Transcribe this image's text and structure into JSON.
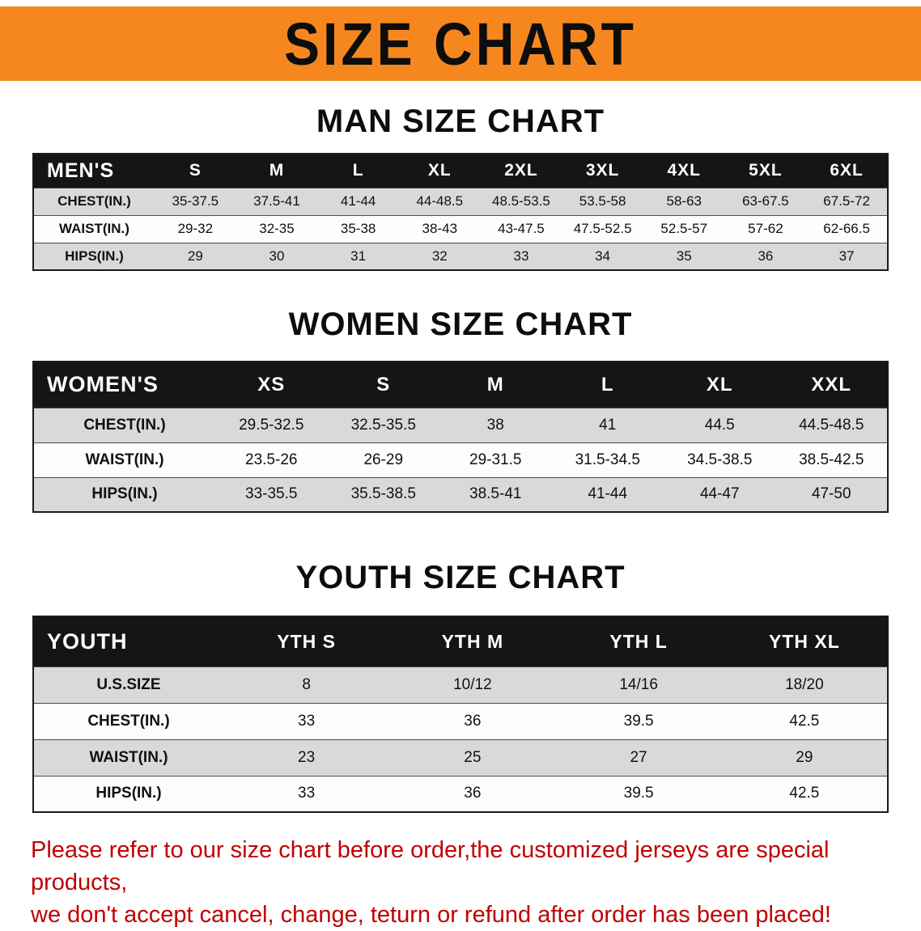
{
  "banner": {
    "title": "SIZE CHART"
  },
  "sections": [
    {
      "heading": "MAN SIZE CHART",
      "table": {
        "header": [
          "MEN'S",
          "S",
          "M",
          "L",
          "XL",
          "2XL",
          "3XL",
          "4XL",
          "5XL",
          "6XL"
        ],
        "rows": [
          [
            "CHEST(IN.)",
            "35-37.5",
            "37.5-41",
            "41-44",
            "44-48.5",
            "48.5-53.5",
            "53.5-58",
            "58-63",
            "63-67.5",
            "67.5-72"
          ],
          [
            "WAIST(IN.)",
            "29-32",
            "32-35",
            "35-38",
            "38-43",
            "43-47.5",
            "47.5-52.5",
            "52.5-57",
            "57-62",
            "62-66.5"
          ],
          [
            "HIPS(IN.)",
            "29",
            "30",
            "31",
            "32",
            "33",
            "34",
            "35",
            "36",
            "37"
          ]
        ]
      }
    },
    {
      "heading": "WOMEN SIZE CHART",
      "table": {
        "header": [
          "WOMEN'S",
          "XS",
          "S",
          "M",
          "L",
          "XL",
          "XXL"
        ],
        "rows": [
          [
            "CHEST(IN.)",
            "29.5-32.5",
            "32.5-35.5",
            "38",
            "41",
            "44.5",
            "44.5-48.5"
          ],
          [
            "WAIST(IN.)",
            "23.5-26",
            "26-29",
            "29-31.5",
            "31.5-34.5",
            "34.5-38.5",
            "38.5-42.5"
          ],
          [
            "HIPS(IN.)",
            "33-35.5",
            "35.5-38.5",
            "38.5-41",
            "41-44",
            "44-47",
            "47-50"
          ]
        ]
      }
    },
    {
      "heading": "YOUTH SIZE CHART",
      "table": {
        "header": [
          "YOUTH",
          "YTH S",
          "YTH M",
          "YTH L",
          "YTH XL"
        ],
        "rows": [
          [
            "U.S.SIZE",
            "8",
            "10/12",
            "14/16",
            "18/20"
          ],
          [
            "CHEST(IN.)",
            "33",
            "36",
            "39.5",
            "42.5"
          ],
          [
            "WAIST(IN.)",
            "23",
            "25",
            "27",
            "29"
          ],
          [
            "HIPS(IN.)",
            "33",
            "36",
            "39.5",
            "42.5"
          ]
        ]
      }
    }
  ],
  "disclaimer": {
    "line1": "Please refer to our size chart before order,the customized jerseys are special products,",
    "line2": "we don't accept cancel, change, teturn or refund after order has been placed!"
  },
  "colors": {
    "banner_bg": "#f6871f",
    "table_header_bg": "#151515",
    "row_alt_gray": "#d9d9d9",
    "disclaimer_red": "#c00000"
  }
}
